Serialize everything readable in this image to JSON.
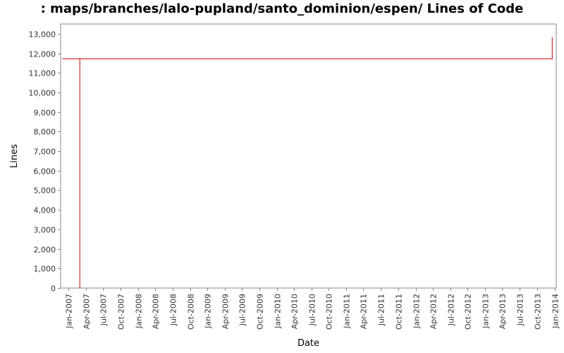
{
  "chart_data": {
    "type": "line",
    "title": ": maps/branches/lalo-pupland/santo_dominion/espen/ Lines of Code",
    "xlabel": "Date",
    "ylabel": "Lines",
    "ylim": [
      0,
      13500
    ],
    "xlim": [
      "2006-11-20",
      "2014-01-10"
    ],
    "y_ticks": [
      {
        "value": 0,
        "label": "0"
      },
      {
        "value": 1000,
        "label": "1,000"
      },
      {
        "value": 2000,
        "label": "2,000"
      },
      {
        "value": 3000,
        "label": "3,000"
      },
      {
        "value": 4000,
        "label": "4,000"
      },
      {
        "value": 5000,
        "label": "5,000"
      },
      {
        "value": 6000,
        "label": "6,000"
      },
      {
        "value": 7000,
        "label": "7,000"
      },
      {
        "value": 8000,
        "label": "8,000"
      },
      {
        "value": 9000,
        "label": "9,000"
      },
      {
        "value": 10000,
        "label": "10,000"
      },
      {
        "value": 11000,
        "label": "11,000"
      },
      {
        "value": 12000,
        "label": "12,000"
      },
      {
        "value": 13000,
        "label": "13,000"
      }
    ],
    "x_ticks": [
      {
        "date": "2007-01-01",
        "label": "Jan-2007"
      },
      {
        "date": "2007-04-01",
        "label": "Apr-2007"
      },
      {
        "date": "2007-07-01",
        "label": "Jul-2007"
      },
      {
        "date": "2007-10-01",
        "label": "Oct-2007"
      },
      {
        "date": "2008-01-01",
        "label": "Jan-2008"
      },
      {
        "date": "2008-04-01",
        "label": "Apr-2008"
      },
      {
        "date": "2008-07-01",
        "label": "Jul-2008"
      },
      {
        "date": "2008-10-01",
        "label": "Oct-2008"
      },
      {
        "date": "2009-01-01",
        "label": "Jan-2009"
      },
      {
        "date": "2009-04-01",
        "label": "Apr-2009"
      },
      {
        "date": "2009-07-01",
        "label": "Jul-2009"
      },
      {
        "date": "2009-10-01",
        "label": "Oct-2009"
      },
      {
        "date": "2010-01-01",
        "label": "Jan-2010"
      },
      {
        "date": "2010-04-01",
        "label": "Apr-2010"
      },
      {
        "date": "2010-07-01",
        "label": "Jul-2010"
      },
      {
        "date": "2010-10-01",
        "label": "Oct-2010"
      },
      {
        "date": "2011-01-01",
        "label": "Jan-2011"
      },
      {
        "date": "2011-04-01",
        "label": "Apr-2011"
      },
      {
        "date": "2011-07-01",
        "label": "Jul-2011"
      },
      {
        "date": "2011-10-01",
        "label": "Oct-2011"
      },
      {
        "date": "2012-01-01",
        "label": "Jan-2012"
      },
      {
        "date": "2012-04-01",
        "label": "Apr-2012"
      },
      {
        "date": "2012-07-01",
        "label": "Jul-2012"
      },
      {
        "date": "2012-10-01",
        "label": "Oct-2012"
      },
      {
        "date": "2013-01-01",
        "label": "Jan-2013"
      },
      {
        "date": "2013-04-01",
        "label": "Apr-2013"
      },
      {
        "date": "2013-07-01",
        "label": "Jul-2013"
      },
      {
        "date": "2013-10-01",
        "label": "Oct-2013"
      },
      {
        "date": "2014-01-01",
        "label": "Jan-2014"
      }
    ],
    "series": [
      {
        "color": "#cc0000",
        "points": [
          {
            "x": "2006-12-01",
            "y": 11720
          },
          {
            "x": "2007-03-01",
            "y": 11720
          },
          {
            "x": "2007-03-01",
            "y": 0
          },
          {
            "x": "2007-03-01",
            "y": 11720
          },
          {
            "x": "2013-12-20",
            "y": 11720
          },
          {
            "x": "2013-12-20",
            "y": 12800
          }
        ]
      }
    ],
    "grid": false,
    "legend": "none"
  },
  "colors": {
    "axis": "#888888",
    "plot_border": "#888888",
    "series": "#cc0000"
  }
}
